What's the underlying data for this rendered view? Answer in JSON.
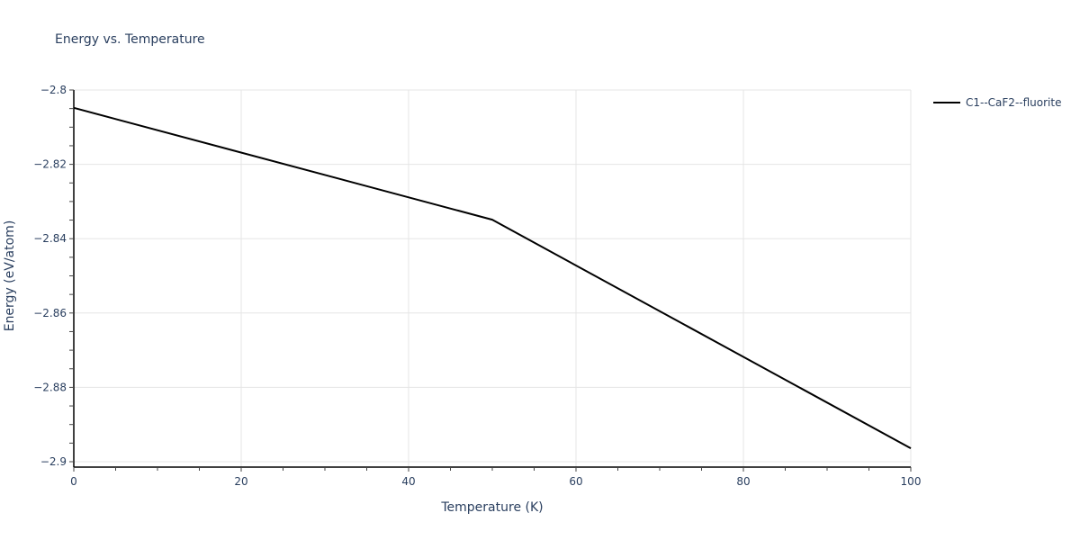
{
  "chart_data": {
    "type": "line",
    "title": "Energy vs. Temperature",
    "xlabel": "Temperature (K)",
    "ylabel": "Energy (eV/atom)",
    "xlim": [
      0,
      100
    ],
    "ylim": [
      -2.9,
      -2.8
    ],
    "x_ticks": [
      0,
      20,
      40,
      60,
      80,
      100
    ],
    "x_tick_labels": [
      "0",
      "20",
      "40",
      "60",
      "80",
      "100"
    ],
    "y_ticks": [
      -2.8,
      -2.82,
      -2.84,
      -2.86,
      -2.88,
      -2.9
    ],
    "y_tick_labels": [
      "−2.8",
      "−2.82",
      "−2.84",
      "−2.86",
      "−2.88",
      "−2.9"
    ],
    "grid": true,
    "legend_position": "top-right-outside",
    "series": [
      {
        "name": "C1--CaF2--fluorite",
        "color": "#000000",
        "x": [
          0,
          50,
          100
        ],
        "y": [
          -2.8048,
          -2.8349,
          -2.8964
        ]
      }
    ]
  }
}
